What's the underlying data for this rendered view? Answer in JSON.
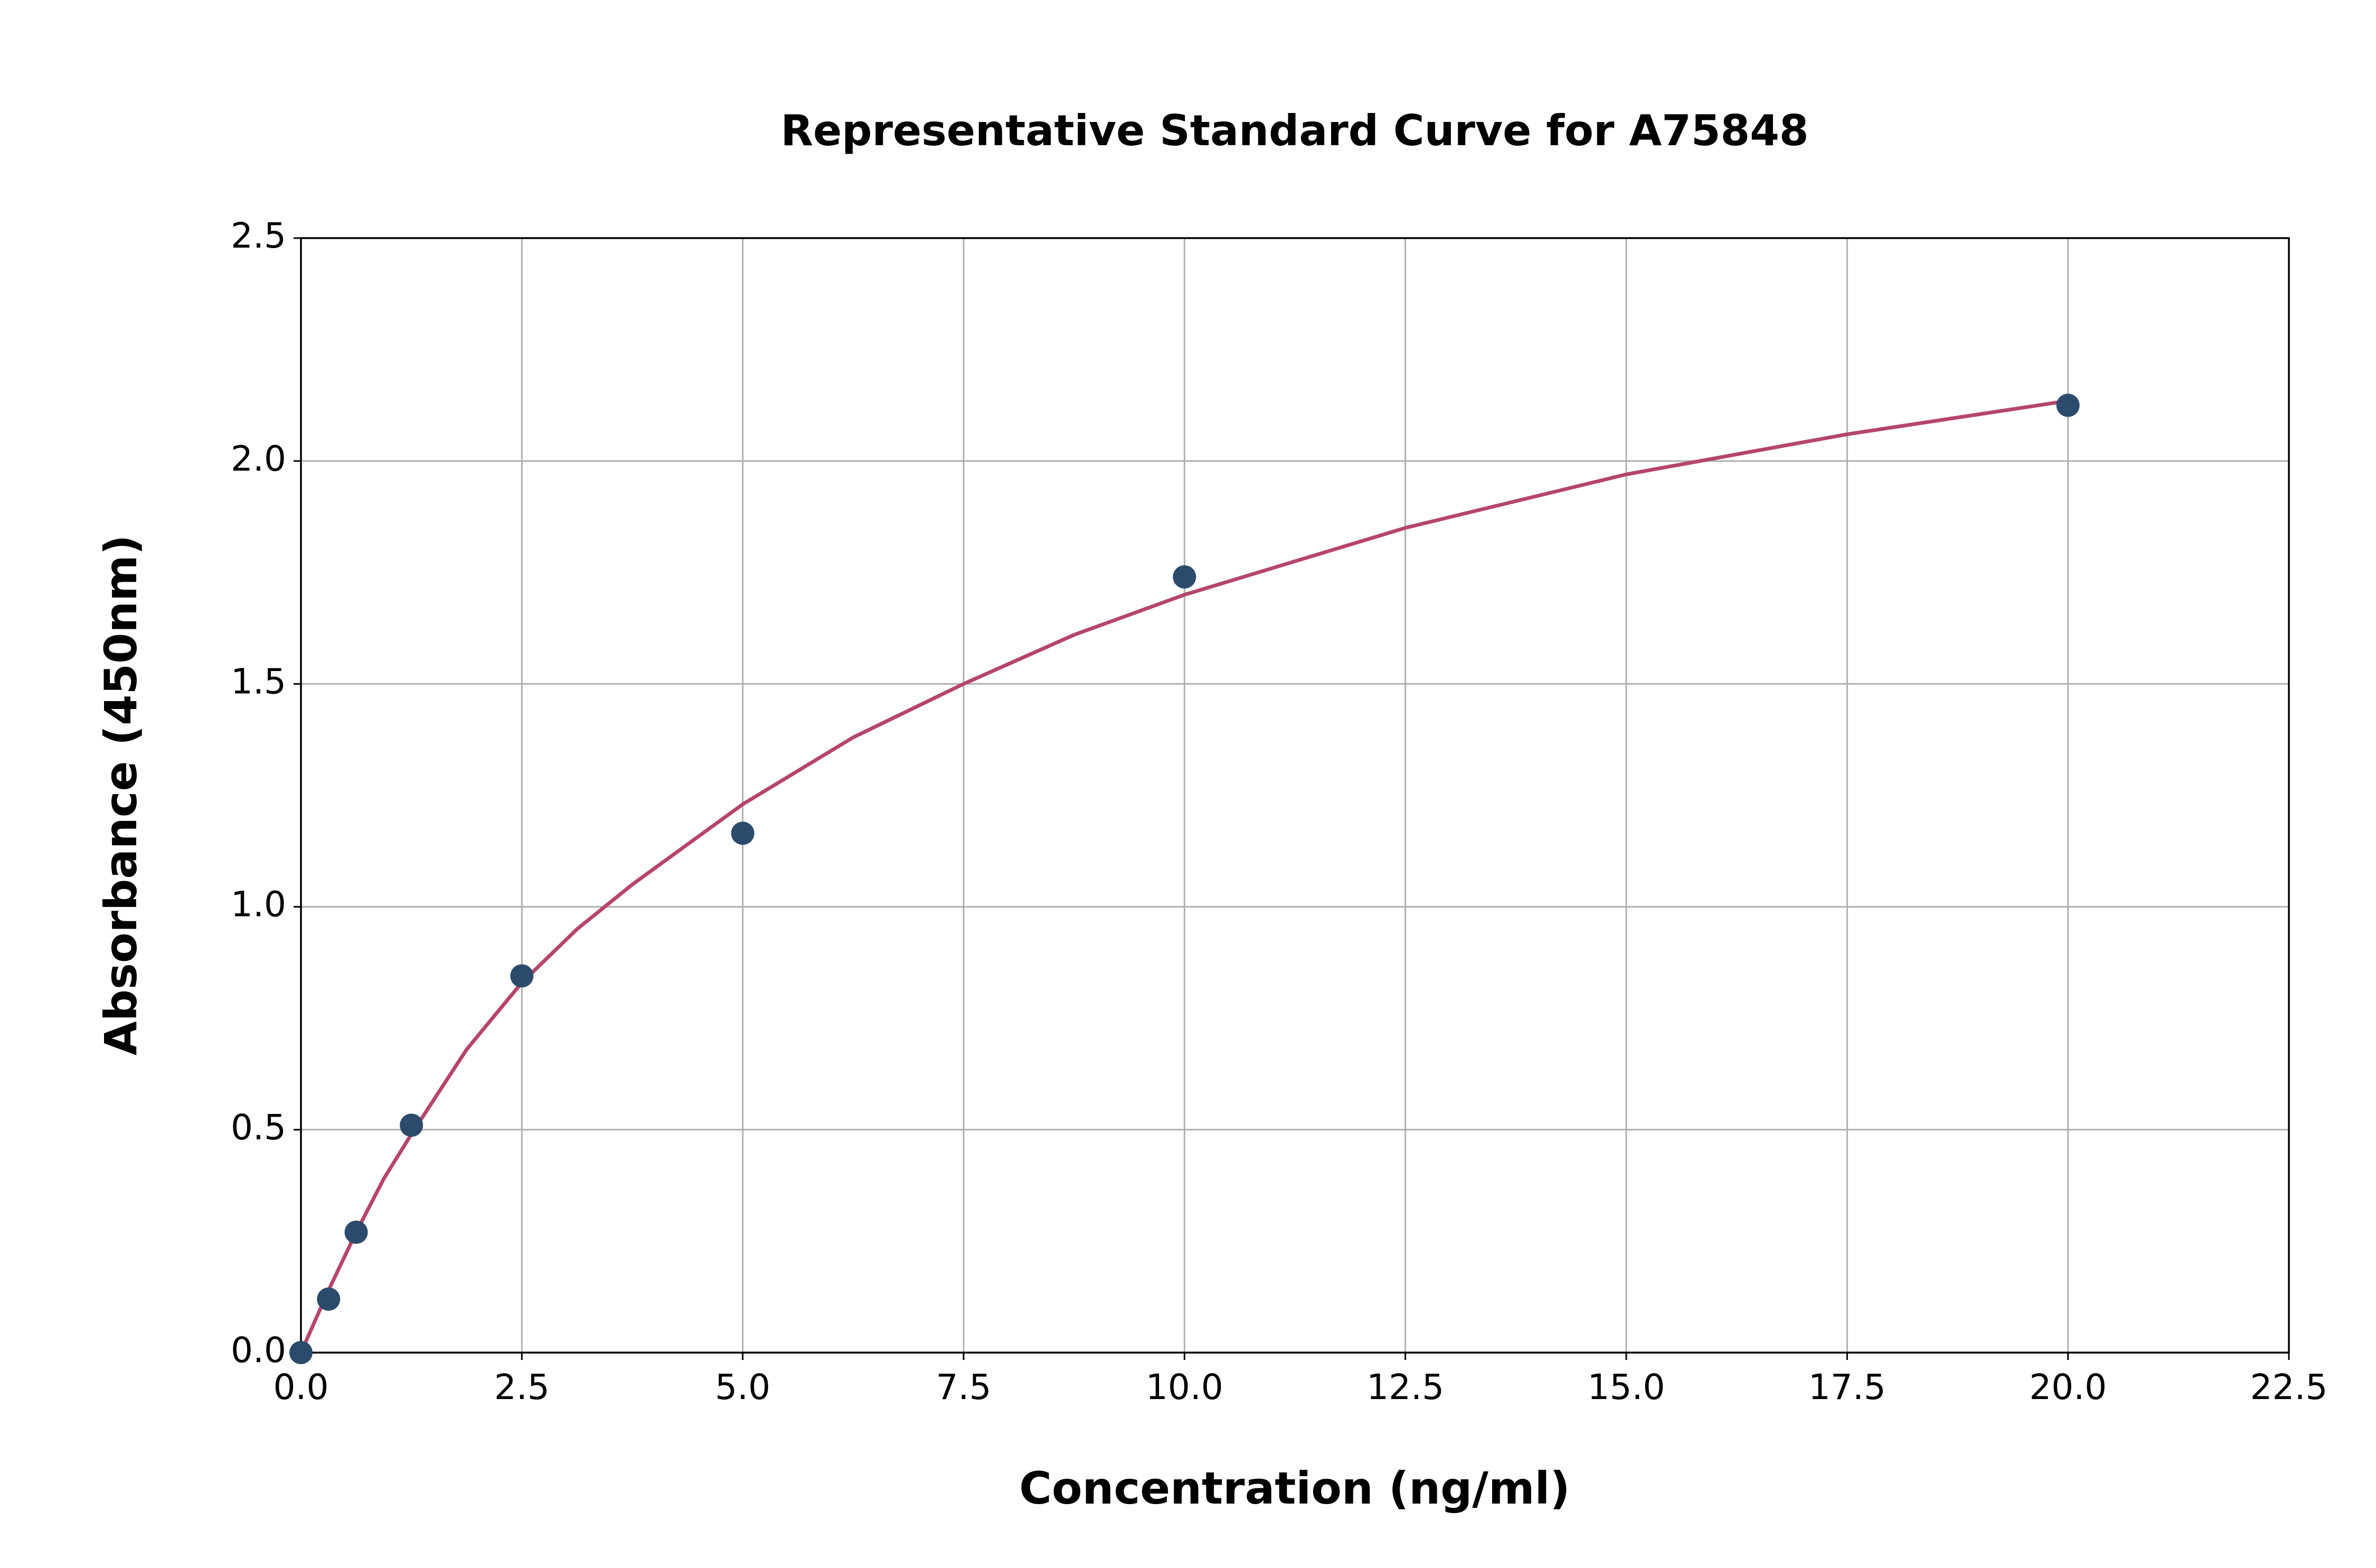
{
  "chart_data": {
    "type": "scatter",
    "title": "Representative Standard Curve for A75848",
    "x_label": "Concentration (ng/ml)",
    "y_label": "Absorbance (450nm)",
    "series": [
      {
        "type": "scatter",
        "color": "#2c4a6b",
        "x": [
          0,
          0.3125,
          0.625,
          1.25,
          2.5,
          5,
          10,
          20
        ],
        "values": [
          0,
          0.12,
          0.27,
          0.51,
          0.845,
          1.165,
          1.74,
          2.125
        ]
      },
      {
        "type": "line",
        "color": "#b5456e",
        "x": [
          0,
          0.3125,
          0.625,
          0.9375,
          1.25,
          1.875,
          2.5,
          3.125,
          3.75,
          5,
          6.25,
          7.5,
          8.75,
          10,
          12.5,
          15,
          17.5,
          20
        ],
        "values": [
          0,
          0.14,
          0.27,
          0.39,
          0.49,
          0.68,
          0.83,
          0.95,
          1.05,
          1.23,
          1.38,
          1.5,
          1.61,
          1.7,
          1.85,
          1.97,
          2.06,
          2.135
        ]
      }
    ],
    "xlim": [
      0,
      22.5
    ],
    "ylim": [
      0,
      2.5
    ],
    "xticks": [
      {
        "value": 0,
        "label": "0.0"
      },
      2.5,
      {
        "value": 5,
        "label": "5.0"
      },
      7.5,
      {
        "value": 10,
        "label": "10.0"
      },
      12.5,
      {
        "value": 15,
        "label": "15.0"
      },
      17.5,
      {
        "value": 20,
        "label": "20.0"
      },
      22.5
    ],
    "yticks": [
      {
        "value": 0,
        "label": "0.0"
      },
      0.5,
      {
        "value": 1,
        "label": "1.0"
      },
      1.5,
      {
        "value": 2,
        "label": "2.0"
      },
      2.5
    ],
    "grid": true
  }
}
